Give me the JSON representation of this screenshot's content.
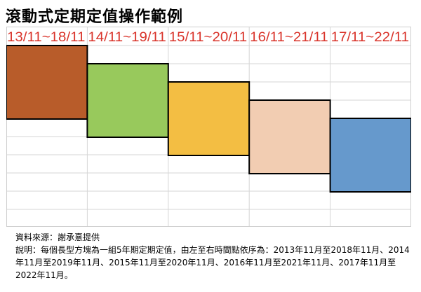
{
  "title": "滾動式定期定值操作範例",
  "periods": [
    {
      "label": "13/11~18/11",
      "color": "#b85c2a"
    },
    {
      "label": "14/11~19/11",
      "color": "#98c95c"
    },
    {
      "label": "15/11~20/11",
      "color": "#f3be43"
    },
    {
      "label": "16/11~21/11",
      "color": "#f2cdb2"
    },
    {
      "label": "17/11~22/11",
      "color": "#6699cc"
    }
  ],
  "source": "資料來源：謝承憙提供",
  "note": "說明：每個長型方塊為一組5年期定期定值，由左至右時間點依序為：2013年11月至2018年11月、2014年11月至2019年11月、2015年11月至2020年11月、2016年11月至2021年11月、2017年11月至2022年11月。"
}
